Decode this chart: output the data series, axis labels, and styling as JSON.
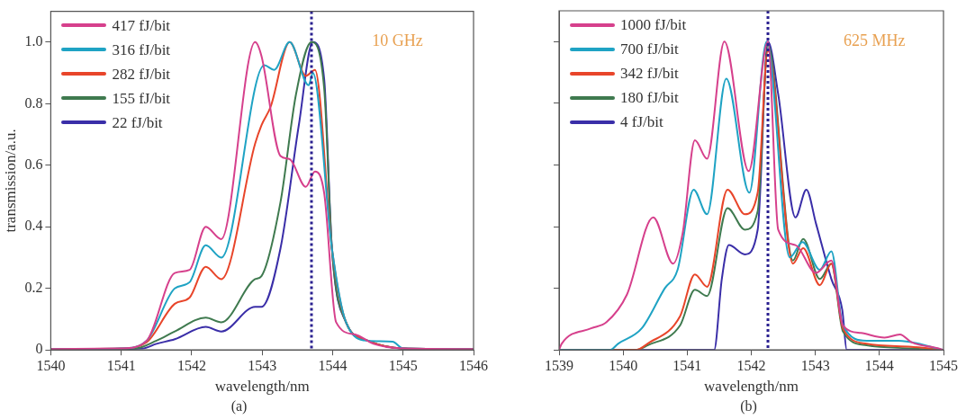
{
  "chart_data": [
    {
      "type": "line",
      "title": "(a)",
      "xlabel": "wavelength/nm",
      "ylabel": "transmission/a.u.",
      "annotations": [
        "10 GHz"
      ],
      "xlim": [
        1540,
        1546
      ],
      "xticks": [
        1540,
        1541,
        1542,
        1543,
        1544,
        1545,
        1546
      ],
      "ylim": [
        0,
        1.1
      ],
      "yticks": [
        0,
        0.2,
        0.4,
        0.6,
        0.8,
        {
          "value": 1,
          "label": "1.0"
        }
      ],
      "legend": "top left",
      "marker": "none",
      "line_style": "solid",
      "grid": false,
      "ref_lines": [
        {
          "axis": "x",
          "value": 1543.7,
          "color": "#2a2090",
          "line_style": "dotted"
        }
      ],
      "series": [
        {
          "name": "417 fJ/bit",
          "color": "#d6408c",
          "x": [
            1540,
            1541,
            1541.36,
            1541.76,
            1541.97,
            1542.2,
            1542.42,
            1542.9,
            1542.99,
            1543.26,
            1543.39,
            1543.62,
            1543.75,
            1543.88,
            1544.05,
            1544.32,
            1544.58,
            1545,
            1546
          ],
          "values": [
            0.003,
            0.005,
            0.03,
            0.25,
            0.26,
            0.4,
            0.36,
            1.0,
            0.955,
            0.63,
            0.62,
            0.53,
            0.58,
            0.51,
            0.09,
            0.05,
            0.02,
            0.005,
            0.003
          ]
        },
        {
          "name": "316 fJ/bit",
          "color": "#1fa3c4",
          "x": [
            1540,
            1541,
            1541.36,
            1541.76,
            1541.97,
            1542.2,
            1542.42,
            1543.03,
            1543.17,
            1543.39,
            1543.66,
            1543.72,
            1543.99,
            1544.19,
            1544.5,
            1544.85,
            1545,
            1546
          ],
          "values": [
            0.003,
            0.005,
            0.03,
            0.2,
            0.22,
            0.34,
            0.3,
            0.925,
            0.91,
            1.0,
            0.86,
            0.9,
            0.33,
            0.09,
            0.03,
            0.027,
            0.005,
            0.003
          ]
        },
        {
          "name": "282 fJ/bit",
          "color": "#e8452a",
          "x": [
            1540,
            1541,
            1541.36,
            1541.76,
            1541.97,
            1542.2,
            1542.42,
            1542.9,
            1542.99,
            1543.12,
            1543.39,
            1543.62,
            1543.75,
            1543.99,
            1544.19,
            1544.5,
            1545,
            1546
          ],
          "values": [
            0.003,
            0.005,
            0.025,
            0.15,
            0.17,
            0.27,
            0.23,
            0.67,
            0.73,
            0.79,
            1.0,
            0.89,
            0.91,
            0.33,
            0.09,
            0.03,
            0.005,
            0.003
          ]
        },
        {
          "name": "155 fJ/bit",
          "color": "#3f7a4f",
          "x": [
            1540,
            1541.2,
            1541.5,
            1541.76,
            1542.2,
            1542.42,
            1542.9,
            1542.99,
            1543.26,
            1543.48,
            1543.7,
            1543.88,
            1543.99,
            1544.19,
            1544.5,
            1545,
            1546
          ],
          "values": [
            0.003,
            0.005,
            0.03,
            0.06,
            0.105,
            0.09,
            0.23,
            0.24,
            0.48,
            0.83,
            1.0,
            0.85,
            0.33,
            0.09,
            0.03,
            0.005,
            0.003
          ]
        },
        {
          "name": "22 fJ/bit",
          "color": "#3a2ea8",
          "x": [
            1540,
            1541.3,
            1541.5,
            1541.76,
            1542.2,
            1542.42,
            1542.9,
            1542.99,
            1543.26,
            1543.52,
            1543.72,
            1543.88,
            1543.99,
            1544.19,
            1544.5,
            1545,
            1546
          ],
          "values": [
            0.003,
            0.005,
            0.02,
            0.035,
            0.075,
            0.06,
            0.14,
            0.14,
            0.33,
            0.73,
            1.0,
            0.88,
            0.33,
            0.09,
            0.03,
            0.005,
            0.003
          ]
        }
      ]
    },
    {
      "type": "line",
      "title": "(b)",
      "xlabel": "wavelength/nm",
      "annotations": [
        "625 MHz"
      ],
      "xlim": [
        1539,
        1545
      ],
      "xticks": [
        1539,
        1540,
        1541,
        1542,
        1543,
        1544,
        1545
      ],
      "ylim": [
        0,
        1.1
      ],
      "yticks": [
        0,
        0.2,
        0.4,
        0.6,
        0.8,
        1.0
      ],
      "tick_labels": "x",
      "legend": "top left",
      "marker": "none",
      "line_style": "solid",
      "grid": false,
      "ref_lines": [
        {
          "axis": "x",
          "value": 1542.26,
          "color": "#2a2090",
          "line_style": "dotted"
        }
      ],
      "series": [
        {
          "name": "1000 fJ/bit",
          "color": "#d6408c",
          "x": [
            1539,
            1539.04,
            1539.5,
            1539.74,
            1540.06,
            1540.47,
            1540.78,
            1540.93,
            1541.12,
            1541.31,
            1541.58,
            1541.96,
            1542.26,
            1542.42,
            1542.69,
            1543.01,
            1543.25,
            1543.43,
            1543.71,
            1544.08,
            1544.32,
            1544.5,
            1544.92,
            1545
          ],
          "values": [
            0,
            0.02,
            0.07,
            0.09,
            0.18,
            0.43,
            0.28,
            0.38,
            0.68,
            0.62,
            1.0,
            0.58,
            1.0,
            0.39,
            0.34,
            0.25,
            0.29,
            0.08,
            0.055,
            0.04,
            0.05,
            0.025,
            0.005,
            0
          ]
        },
        {
          "name": "700 fJ/bit",
          "color": "#1fa3c4",
          "x": [
            1539,
            1539.8,
            1539.92,
            1540.29,
            1540.65,
            1540.85,
            1541.1,
            1541.31,
            1541.61,
            1541.97,
            1542.24,
            1542.6,
            1542.8,
            1543.07,
            1543.25,
            1543.43,
            1543.8,
            1544.3,
            1544.9,
            1545
          ],
          "values": [
            0,
            0,
            0.02,
            0.07,
            0.2,
            0.26,
            0.52,
            0.44,
            0.88,
            0.51,
            1.0,
            0.3,
            0.35,
            0.26,
            0.32,
            0.08,
            0.03,
            0.03,
            0.005,
            0
          ]
        },
        {
          "name": "342 fJ/bit",
          "color": "#e8452a",
          "x": [
            1539,
            1540.2,
            1540.38,
            1540.89,
            1541.12,
            1541.31,
            1541.63,
            1541.9,
            1542.1,
            1542.26,
            1542.65,
            1542.81,
            1543.07,
            1543.25,
            1543.43,
            1543.8,
            1544.5,
            1545
          ],
          "values": [
            0,
            0,
            0.02,
            0.11,
            0.245,
            0.205,
            0.52,
            0.44,
            0.51,
            0.97,
            0.28,
            0.33,
            0.21,
            0.28,
            0.07,
            0.02,
            0.01,
            0
          ]
        },
        {
          "name": "180 fJ/bit",
          "color": "#3f7a4f",
          "x": [
            1539,
            1540.2,
            1540.38,
            1540.89,
            1541.12,
            1541.31,
            1541.63,
            1541.9,
            1542.1,
            1542.26,
            1542.65,
            1542.81,
            1543.07,
            1543.25,
            1543.43,
            1543.8,
            1544.5,
            1545
          ],
          "values": [
            0,
            0,
            0.015,
            0.08,
            0.195,
            0.175,
            0.46,
            0.39,
            0.45,
            0.99,
            0.29,
            0.36,
            0.23,
            0.28,
            0.06,
            0.015,
            0.005,
            0
          ]
        },
        {
          "name": "4 fJ/bit",
          "color": "#3a2ea8",
          "x": [
            1539,
            1541.42,
            1541.54,
            1541.65,
            1541.9,
            1542.1,
            1542.26,
            1542.42,
            1542.69,
            1542.86,
            1543.01,
            1543.25,
            1543.42,
            1543.49,
            1545
          ],
          "values": [
            0,
            0,
            0.23,
            0.34,
            0.31,
            0.39,
            1.0,
            0.83,
            0.43,
            0.52,
            0.41,
            0.23,
            0.13,
            0,
            0
          ]
        }
      ]
    }
  ]
}
